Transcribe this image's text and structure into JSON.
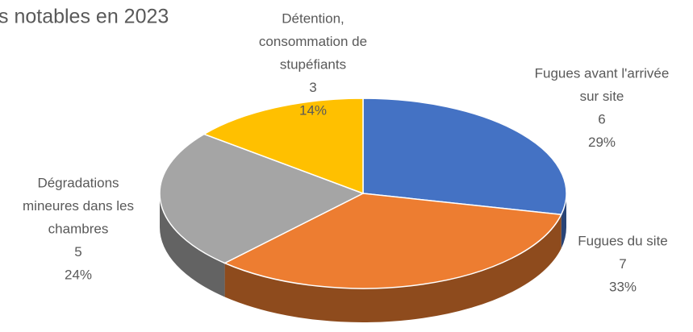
{
  "chart_data": {
    "type": "pie3d",
    "title": "s notables en 2023",
    "categories": [
      [
        "Fugues avant l'arrivée",
        "sur site"
      ],
      [
        "Fugues du site"
      ],
      [
        "Dégradations",
        "mineures dans les",
        "chambres"
      ],
      [
        "Détention,",
        "consommation de",
        "stupéfiants"
      ]
    ],
    "values": [
      6,
      7,
      5,
      3
    ],
    "percentage_labels": [
      "29%",
      "33%",
      "24%",
      "14%"
    ],
    "colors": [
      "#4472c4",
      "#ed7d31",
      "#a5a5a5",
      "#ffc000"
    ]
  }
}
